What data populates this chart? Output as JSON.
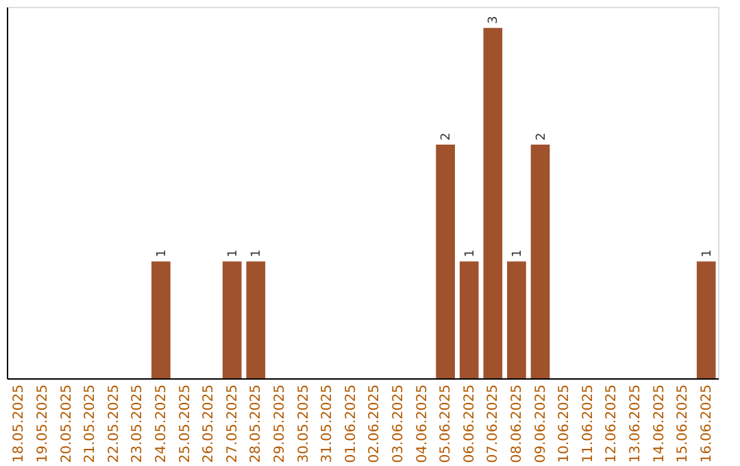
{
  "chart_data": {
    "type": "bar",
    "categories": [
      "18.05.2025",
      "19.05.2025",
      "20.05.2025",
      "21.05.2025",
      "22.05.2025",
      "23.05.2025",
      "24.05.2025",
      "25.05.2025",
      "26.05.2025",
      "27.05.2025",
      "28.05.2025",
      "29.05.2025",
      "30.05.2025",
      "31.05.2025",
      "01.06.2025",
      "02.06.2025",
      "03.06.2025",
      "04.06.2025",
      "05.06.2025",
      "06.06.2025",
      "07.06.2025",
      "08.06.2025",
      "09.06.2025",
      "10.06.2025",
      "11.06.2025",
      "12.06.2025",
      "13.06.2025",
      "14.06.2025",
      "15.06.2025",
      "16.06.2025"
    ],
    "values": [
      0,
      0,
      0,
      0,
      0,
      0,
      1,
      0,
      0,
      1,
      1,
      0,
      0,
      0,
      0,
      0,
      0,
      0,
      2,
      1,
      3,
      1,
      2,
      0,
      0,
      0,
      0,
      0,
      0,
      1
    ],
    "value_labels": [
      null,
      null,
      null,
      null,
      null,
      null,
      "1",
      null,
      null,
      "1",
      "1",
      null,
      null,
      null,
      null,
      null,
      null,
      null,
      "2",
      "1",
      "3",
      "1",
      "2",
      null,
      null,
      null,
      null,
      null,
      null,
      "1"
    ],
    "color": "#a0522d",
    "tick_labels": "x",
    "grid": false
  }
}
